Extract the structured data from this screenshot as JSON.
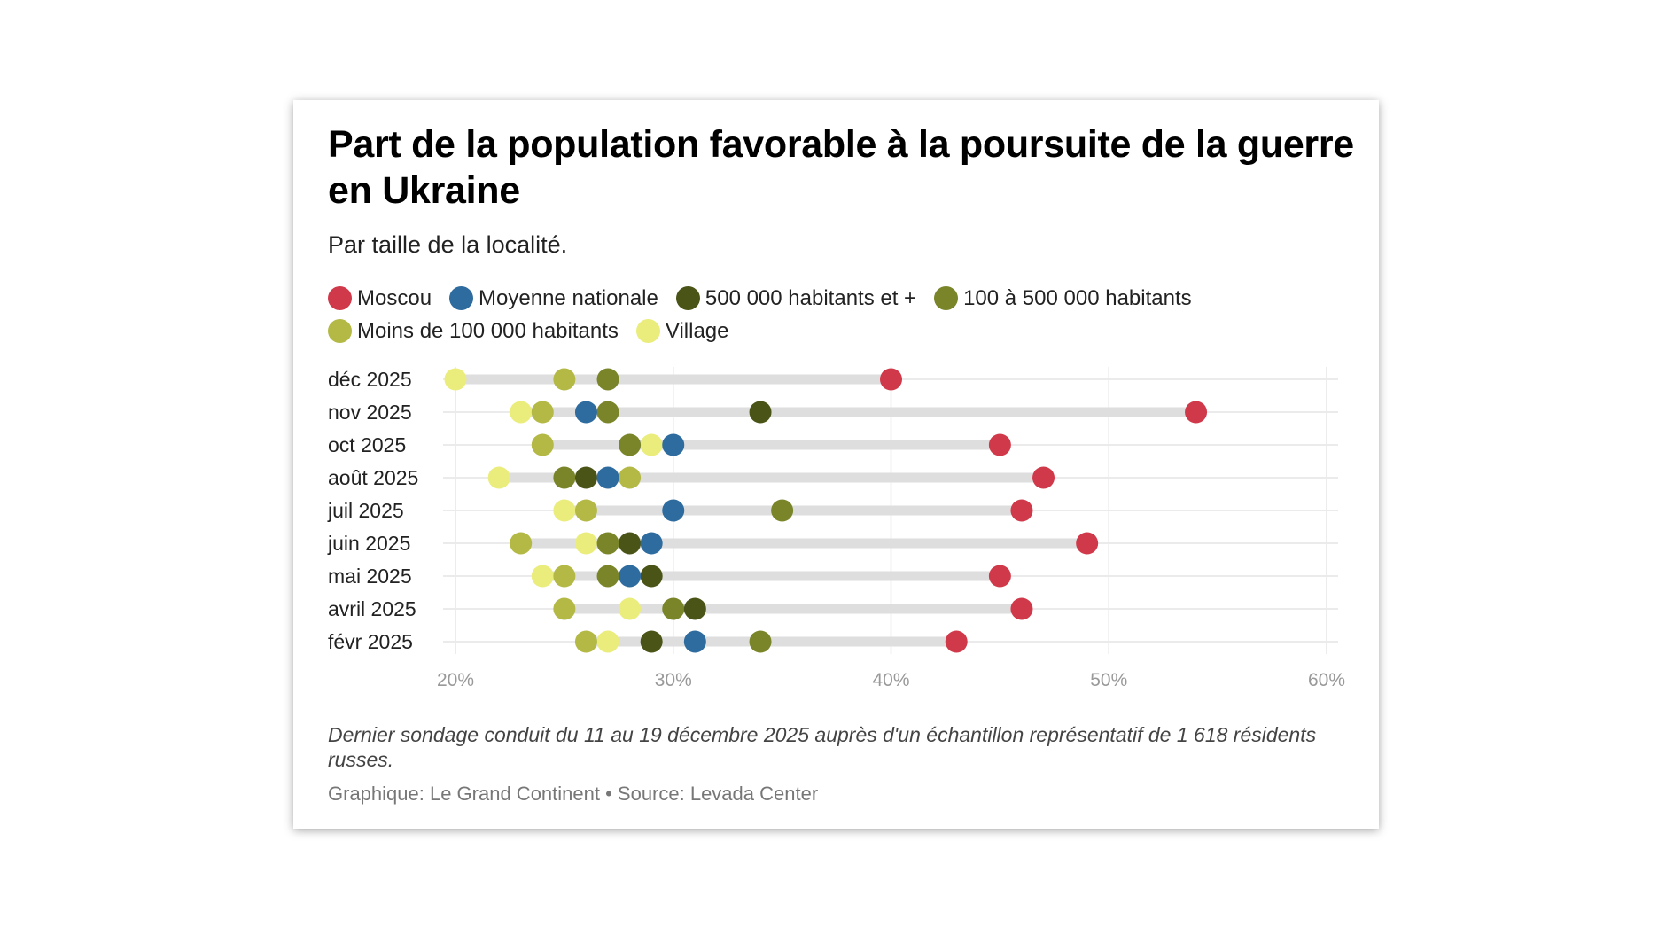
{
  "title": "Part de la population favorable à la poursuite de la guerre en Ukraine",
  "subtitle": "Par taille de la localité.",
  "note": "Dernier sondage conduit du 11 au 19 décembre 2025 auprès d'un échantillon représentatif de 1 618 résidents russes.",
  "credit": "Graphique: Le Grand Continent • Source: Levada Center",
  "chart_data": {
    "type": "dot-range",
    "title": "Part de la population favorable à la poursuite de la guerre en Ukraine",
    "subtitle": "Par taille de la localité.",
    "xlim": [
      20,
      60
    ],
    "xticks": [
      20,
      30,
      40,
      50,
      60
    ],
    "xtick_labels": [
      "20%",
      "30%",
      "40%",
      "50%",
      "60%"
    ],
    "grid": true,
    "legend_position": "top",
    "categories": [
      "déc 2025",
      "nov 2025",
      "oct 2025",
      "août 2025",
      "juil 2025",
      "juin 2025",
      "mai 2025",
      "avril 2025",
      "févr 2025"
    ],
    "series": [
      {
        "name": "Moscou",
        "color": "#d0394a",
        "values": [
          40,
          54,
          45,
          47,
          46,
          49,
          45,
          46,
          43
        ]
      },
      {
        "name": "Moyenne nationale",
        "color": "#2e6b9e",
        "values": [
          null,
          26,
          30,
          27,
          30,
          29,
          28,
          null,
          31
        ]
      },
      {
        "name": "500 000 habitants et +",
        "color": "#4a5417",
        "values": [
          null,
          34,
          null,
          26,
          null,
          28,
          29,
          31,
          29
        ]
      },
      {
        "name": "100 à 500 000 habitants",
        "color": "#7a8529",
        "values": [
          27,
          27,
          28,
          25,
          35,
          27,
          27,
          30,
          34
        ]
      },
      {
        "name": "Moins de 100 000 habitants",
        "color": "#b3b944",
        "values": [
          25,
          24,
          24,
          28,
          26,
          23,
          25,
          25,
          26
        ]
      },
      {
        "name": "Village",
        "color": "#eaed7c",
        "values": [
          20,
          23,
          29,
          22,
          25,
          26,
          24,
          28,
          27
        ]
      }
    ]
  }
}
